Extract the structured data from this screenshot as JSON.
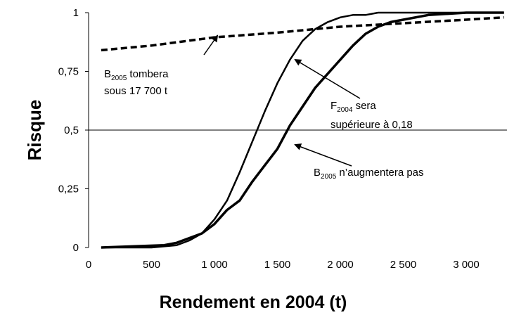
{
  "chart_data": {
    "type": "line",
    "xlabel": "Rendement en 2004 (t)",
    "ylabel": "Risque",
    "xlim": [
      0,
      3300
    ],
    "ylim": [
      0,
      1
    ],
    "xticks": [
      0,
      500,
      {
        "value": 1000,
        "label": "1 000"
      },
      {
        "value": 1500,
        "label": "1 500"
      },
      {
        "value": 2000,
        "label": "2 000"
      },
      {
        "value": 2500,
        "label": "2 500"
      },
      {
        "value": 3000,
        "label": "3 000"
      }
    ],
    "yticks": [
      0,
      {
        "value": 0.25,
        "label": "0,25"
      },
      {
        "value": 0.5,
        "label": "0,5"
      },
      {
        "value": 0.75,
        "label": "0,75"
      },
      1
    ],
    "hline": 0.5,
    "series": [
      {
        "color": "#000000",
        "style": "dashed",
        "weight": "thick",
        "x": [
          100,
          500,
          1000,
          1500,
          2000,
          2500,
          3000,
          3300
        ],
        "values": [
          0.84,
          0.86,
          0.895,
          0.915,
          0.94,
          0.955,
          0.97,
          0.98
        ]
      },
      {
        "color": "#000000",
        "style": "solid",
        "weight": "medium",
        "x": [
          100,
          500,
          700,
          800,
          900,
          1000,
          1100,
          1200,
          1300,
          1400,
          1500,
          1600,
          1700,
          1800,
          1900,
          2000,
          2100,
          2200,
          2300,
          3300
        ],
        "values": [
          0,
          0,
          0.01,
          0.03,
          0.06,
          0.12,
          0.2,
          0.32,
          0.45,
          0.58,
          0.7,
          0.8,
          0.88,
          0.93,
          0.96,
          0.98,
          0.99,
          0.99,
          1.0,
          1.0
        ]
      },
      {
        "color": "#000000",
        "style": "solid",
        "weight": "thick",
        "x": [
          100,
          600,
          700,
          800,
          900,
          1000,
          1100,
          1200,
          1300,
          1400,
          1500,
          1600,
          1700,
          1800,
          1900,
          2000,
          2100,
          2200,
          2300,
          2400,
          2500,
          2700,
          3000,
          3300
        ],
        "values": [
          0,
          0.01,
          0.02,
          0.04,
          0.06,
          0.1,
          0.16,
          0.2,
          0.28,
          0.35,
          0.42,
          0.52,
          0.6,
          0.68,
          0.74,
          0.8,
          0.86,
          0.91,
          0.94,
          0.96,
          0.97,
          0.99,
          1.0,
          1.0
        ]
      }
    ],
    "annotations": [
      {
        "lines": [
          [
            {
              "text": "B"
            },
            {
              "text": "2005",
              "sub": true
            },
            {
              "text": " tombera"
            }
          ],
          [
            {
              "text": "sous 17 700 t"
            }
          ]
        ]
      },
      {
        "lines": [
          [
            {
              "text": "F"
            },
            {
              "text": "2004",
              "sub": true
            },
            {
              "text": " sera"
            }
          ],
          [
            {
              "text": "supérieure à 0,18"
            }
          ]
        ]
      },
      {
        "lines": [
          [
            {
              "text": "B"
            },
            {
              "text": "2005",
              "sub": true
            },
            {
              "text": " n’augmentera pas"
            }
          ]
        ]
      }
    ]
  }
}
